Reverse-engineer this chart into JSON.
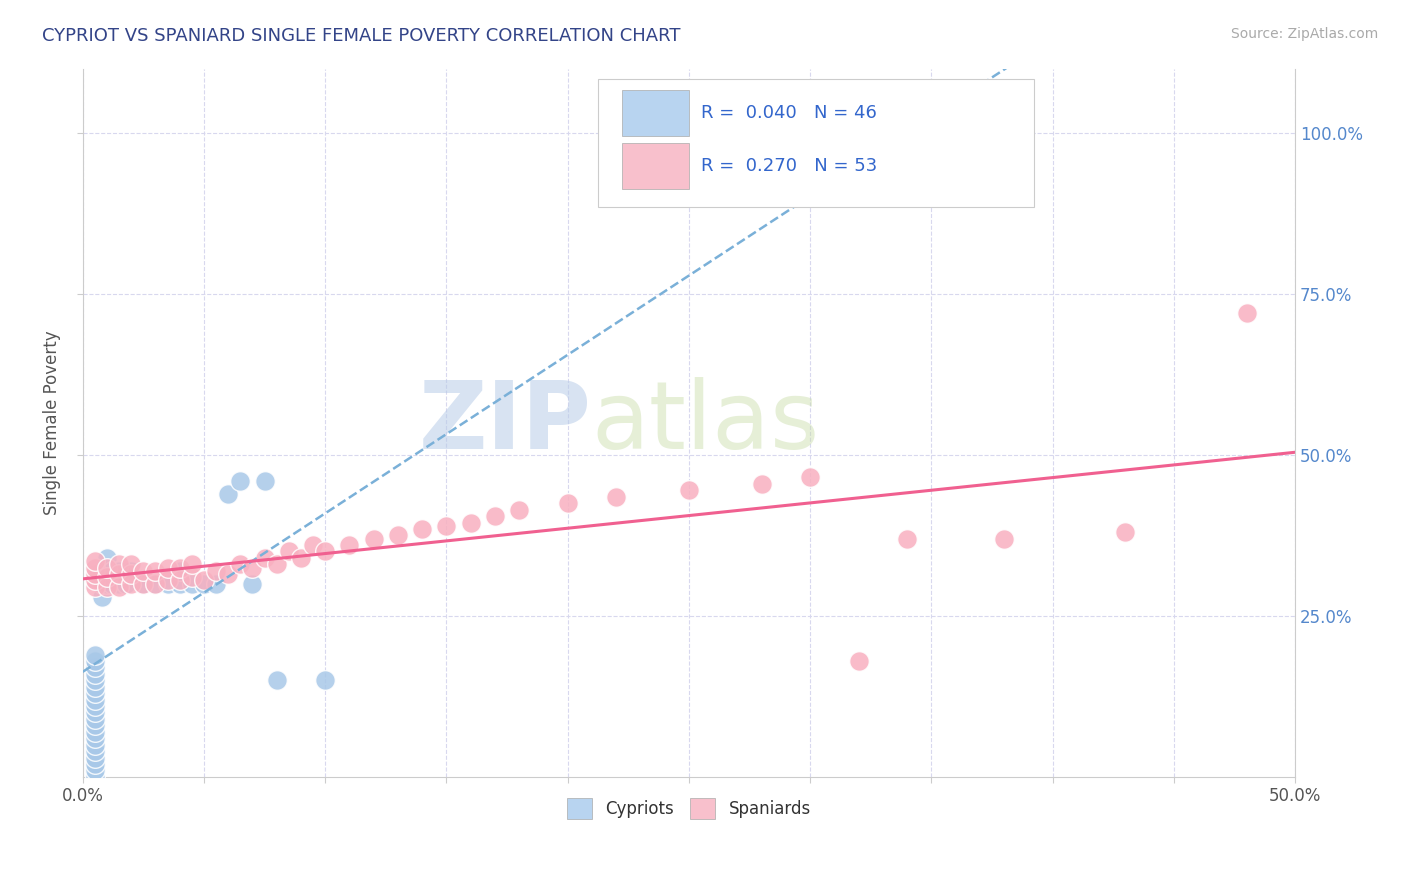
{
  "title": "CYPRIOT VS SPANIARD SINGLE FEMALE POVERTY CORRELATION CHART",
  "source": "Source: ZipAtlas.com",
  "ylabel": "Single Female Poverty",
  "xlim": [
    0.0,
    0.5
  ],
  "ylim": [
    0.0,
    1.1
  ],
  "xticks": [
    0.0,
    0.05,
    0.1,
    0.15,
    0.2,
    0.25,
    0.3,
    0.35,
    0.4,
    0.45,
    0.5
  ],
  "ytick_positions": [
    0.25,
    0.5,
    0.75,
    1.0
  ],
  "yticklabels": [
    "25.0%",
    "50.0%",
    "75.0%",
    "100.0%"
  ],
  "cypriot_R": 0.04,
  "cypriot_N": 46,
  "spaniard_R": 0.27,
  "spaniard_N": 53,
  "cypriot_color": "#a8c8e8",
  "spaniard_color": "#f8b0c0",
  "cypriot_line_color": "#7ab0d8",
  "spaniard_line_color": "#f06090",
  "background_color": "#ffffff",
  "grid_color": "#d8d8ee",
  "watermark_zip": "ZIP",
  "watermark_atlas": "atlas",
  "legend_box_color_cypriot": "#b8d4f0",
  "legend_box_color_spaniard": "#f8c0cc",
  "cypriot_x": [
    0.005,
    0.005,
    0.005,
    0.005,
    0.005,
    0.005,
    0.005,
    0.005,
    0.005,
    0.005,
    0.005,
    0.005,
    0.005,
    0.005,
    0.005,
    0.005,
    0.005,
    0.005,
    0.005,
    0.005,
    0.008,
    0.008,
    0.008,
    0.01,
    0.01,
    0.01,
    0.012,
    0.012,
    0.015,
    0.015,
    0.018,
    0.02,
    0.025,
    0.03,
    0.035,
    0.04,
    0.04,
    0.045,
    0.05,
    0.055,
    0.06,
    0.065,
    0.07,
    0.075,
    0.08,
    0.1
  ],
  "cypriot_y": [
    0.0,
    0.01,
    0.02,
    0.03,
    0.04,
    0.05,
    0.06,
    0.07,
    0.08,
    0.09,
    0.1,
    0.11,
    0.12,
    0.13,
    0.14,
    0.15,
    0.16,
    0.17,
    0.18,
    0.19,
    0.28,
    0.3,
    0.32,
    0.3,
    0.32,
    0.34,
    0.3,
    0.32,
    0.3,
    0.32,
    0.3,
    0.32,
    0.3,
    0.3,
    0.3,
    0.3,
    0.32,
    0.3,
    0.3,
    0.3,
    0.44,
    0.46,
    0.3,
    0.46,
    0.15,
    0.15
  ],
  "spaniard_x": [
    0.005,
    0.005,
    0.005,
    0.005,
    0.005,
    0.01,
    0.01,
    0.01,
    0.015,
    0.015,
    0.015,
    0.02,
    0.02,
    0.02,
    0.025,
    0.025,
    0.03,
    0.03,
    0.035,
    0.035,
    0.04,
    0.04,
    0.045,
    0.045,
    0.05,
    0.055,
    0.06,
    0.065,
    0.07,
    0.075,
    0.08,
    0.085,
    0.09,
    0.095,
    0.1,
    0.11,
    0.12,
    0.13,
    0.14,
    0.15,
    0.16,
    0.17,
    0.18,
    0.2,
    0.22,
    0.25,
    0.28,
    0.3,
    0.32,
    0.34,
    0.38,
    0.43,
    0.48
  ],
  "spaniard_y": [
    0.295,
    0.305,
    0.315,
    0.325,
    0.335,
    0.295,
    0.31,
    0.325,
    0.295,
    0.315,
    0.33,
    0.3,
    0.315,
    0.33,
    0.3,
    0.32,
    0.3,
    0.32,
    0.305,
    0.325,
    0.305,
    0.325,
    0.31,
    0.33,
    0.305,
    0.32,
    0.315,
    0.33,
    0.325,
    0.34,
    0.33,
    0.35,
    0.34,
    0.36,
    0.35,
    0.36,
    0.37,
    0.375,
    0.385,
    0.39,
    0.395,
    0.405,
    0.415,
    0.425,
    0.435,
    0.445,
    0.455,
    0.465,
    0.18,
    0.37,
    0.37,
    0.38,
    0.72
  ]
}
